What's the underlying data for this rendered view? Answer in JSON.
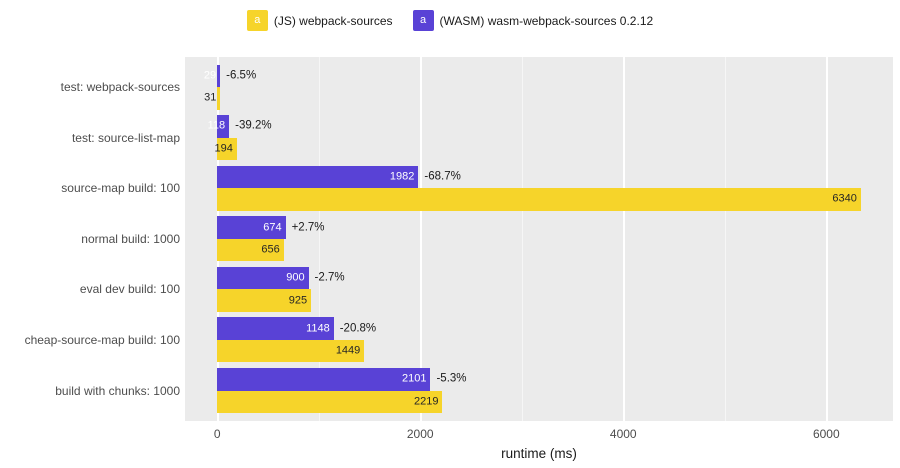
{
  "legend": {
    "key_glyph": "a",
    "items": [
      {
        "label": "(JS) webpack-sources",
        "color": "#f6d42a"
      },
      {
        "label": "(WASM) wasm-webpack-sources 0.2.12",
        "color": "#5942d6"
      }
    ]
  },
  "chart_data": {
    "type": "bar",
    "orientation": "horizontal",
    "title": "",
    "xlabel": "runtime (ms)",
    "categories": [
      "test: webpack-sources",
      "test: source-list-map",
      "source-map build: 100",
      "normal build: 1000",
      "eval dev build: 100",
      "cheap-source-map build: 100",
      "build with chunks: 1000"
    ],
    "series": [
      {
        "name": "(WASM) wasm-webpack-sources 0.2.12",
        "color": "#5942d6",
        "label_color": "#ffffff",
        "values": [
          29,
          118,
          1982,
          674,
          900,
          1148,
          2101
        ]
      },
      {
        "name": "(JS) webpack-sources",
        "color": "#f6d42a",
        "label_color": "#262626",
        "values": [
          31,
          194,
          6340,
          656,
          925,
          1449,
          2219
        ]
      }
    ],
    "delta_labels": [
      "-6.5%",
      "-39.2%",
      "-68.7%",
      "+2.7%",
      "-2.7%",
      "-20.8%",
      "-5.3%"
    ],
    "x_ticks": [
      0,
      2000,
      4000,
      6000
    ],
    "x_minor_ticks": [
      1000,
      3000,
      5000
    ],
    "x_domain": [
      -317,
      6657
    ],
    "xlim": [
      0,
      6657
    ],
    "panel_bg": "#ebebeb",
    "grid_color": "#ffffff",
    "legend_position": "top",
    "grid": true
  }
}
